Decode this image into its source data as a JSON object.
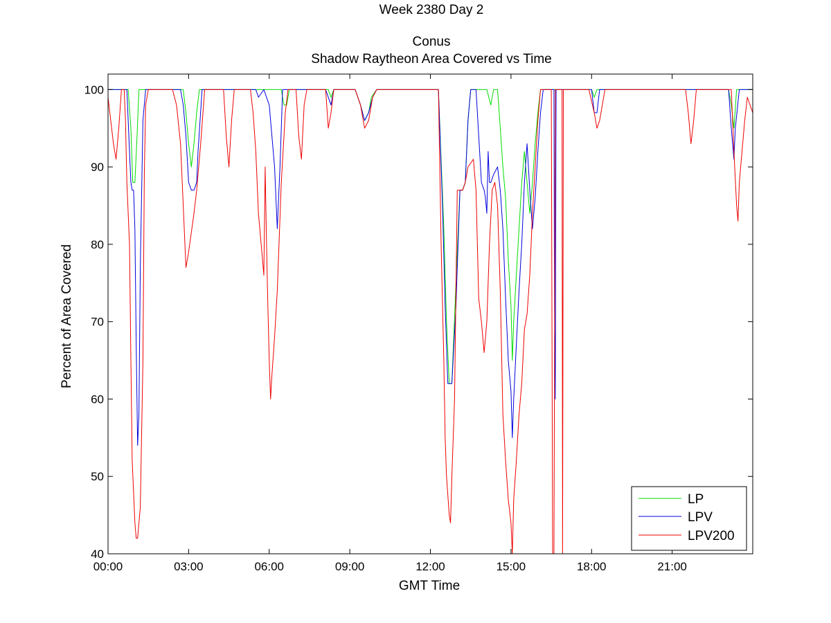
{
  "chart_data": {
    "type": "line",
    "title_lines": [
      "Week 2380 Day 2",
      "Conus",
      "Shadow Raytheon Area Covered vs Time"
    ],
    "xlabel": "GMT Time",
    "ylabel": "Percent of Area Covered",
    "xlim": [
      0,
      24
    ],
    "ylim": [
      40,
      102
    ],
    "x_ticks": [
      0,
      3,
      6,
      9,
      12,
      15,
      18,
      21
    ],
    "x_tick_labels": [
      "00:00",
      "03:00",
      "06:00",
      "09:00",
      "12:00",
      "15:00",
      "18:00",
      "21:00"
    ],
    "y_ticks": [
      40,
      50,
      60,
      70,
      80,
      90,
      100
    ],
    "y_tick_labels": [
      "40",
      "50",
      "60",
      "70",
      "80",
      "90",
      "100"
    ],
    "grid": false,
    "legend_position": "bottom-right",
    "series": [
      {
        "name": "LP",
        "color": "#00dd00",
        "points": [
          [
            0,
            100
          ],
          [
            0.75,
            100
          ],
          [
            0.85,
            95
          ],
          [
            0.92,
            88
          ],
          [
            1.0,
            88
          ],
          [
            1.08,
            94
          ],
          [
            1.15,
            100
          ],
          [
            1.4,
            100
          ],
          [
            1.7,
            100
          ],
          [
            2.8,
            100
          ],
          [
            2.9,
            97
          ],
          [
            3.0,
            93
          ],
          [
            3.1,
            90
          ],
          [
            3.2,
            93
          ],
          [
            3.3,
            97
          ],
          [
            3.4,
            100
          ],
          [
            5.8,
            100
          ],
          [
            6.2,
            100
          ],
          [
            6.45,
            100
          ],
          [
            6.55,
            98
          ],
          [
            6.65,
            98
          ],
          [
            6.75,
            100
          ],
          [
            8.2,
            100
          ],
          [
            8.3,
            99
          ],
          [
            8.4,
            100
          ],
          [
            9.2,
            100
          ],
          [
            9.4,
            98
          ],
          [
            9.55,
            96
          ],
          [
            9.7,
            97
          ],
          [
            9.8,
            99
          ],
          [
            10.0,
            100
          ],
          [
            12.0,
            100
          ],
          [
            12.3,
            100
          ],
          [
            12.5,
            82
          ],
          [
            12.6,
            70
          ],
          [
            12.7,
            62
          ],
          [
            12.8,
            62
          ],
          [
            12.95,
            75
          ],
          [
            13.1,
            87
          ],
          [
            13.2,
            87
          ],
          [
            13.3,
            88
          ],
          [
            13.4,
            96
          ],
          [
            13.5,
            100
          ],
          [
            14.1,
            100
          ],
          [
            14.25,
            98
          ],
          [
            14.35,
            100
          ],
          [
            14.5,
            100
          ],
          [
            14.6,
            95
          ],
          [
            14.7,
            90
          ],
          [
            14.8,
            86
          ],
          [
            14.9,
            78
          ],
          [
            15.0,
            72
          ],
          [
            15.05,
            65
          ],
          [
            15.1,
            70
          ],
          [
            15.2,
            76
          ],
          [
            15.3,
            82
          ],
          [
            15.4,
            88
          ],
          [
            15.5,
            92
          ],
          [
            15.6,
            88
          ],
          [
            15.7,
            84
          ],
          [
            15.8,
            88
          ],
          [
            15.9,
            93
          ],
          [
            16.0,
            97
          ],
          [
            16.1,
            100
          ],
          [
            18.0,
            100
          ],
          [
            18.1,
            99
          ],
          [
            18.2,
            100
          ],
          [
            18.4,
            100
          ],
          [
            21.5,
            100
          ],
          [
            22.0,
            100
          ],
          [
            23.1,
            100
          ],
          [
            23.2,
            98
          ],
          [
            23.3,
            95
          ],
          [
            23.4,
            100
          ],
          [
            24,
            100
          ]
        ]
      },
      {
        "name": "LPV",
        "color": "#0000dd",
        "points": [
          [
            0,
            100
          ],
          [
            0.7,
            100
          ],
          [
            0.8,
            92
          ],
          [
            0.85,
            88
          ],
          [
            0.9,
            87
          ],
          [
            0.95,
            87
          ],
          [
            1.0,
            82
          ],
          [
            1.05,
            67
          ],
          [
            1.1,
            54
          ],
          [
            1.15,
            58
          ],
          [
            1.2,
            77
          ],
          [
            1.3,
            96
          ],
          [
            1.4,
            100
          ],
          [
            1.7,
            100
          ],
          [
            2.7,
            100
          ],
          [
            2.8,
            98
          ],
          [
            2.9,
            94
          ],
          [
            3.0,
            88
          ],
          [
            3.1,
            87
          ],
          [
            3.2,
            87
          ],
          [
            3.3,
            88
          ],
          [
            3.35,
            92
          ],
          [
            3.5,
            100
          ],
          [
            5.5,
            100
          ],
          [
            5.6,
            99
          ],
          [
            5.8,
            100
          ],
          [
            6.0,
            98
          ],
          [
            6.2,
            90
          ],
          [
            6.3,
            82
          ],
          [
            6.4,
            90
          ],
          [
            6.5,
            100
          ],
          [
            7.0,
            100
          ],
          [
            8.1,
            100
          ],
          [
            8.3,
            98
          ],
          [
            8.4,
            100
          ],
          [
            9.2,
            100
          ],
          [
            9.4,
            98
          ],
          [
            9.55,
            96
          ],
          [
            9.7,
            97
          ],
          [
            9.85,
            99
          ],
          [
            10.0,
            100
          ],
          [
            12.0,
            100
          ],
          [
            12.3,
            100
          ],
          [
            12.45,
            85
          ],
          [
            12.55,
            72
          ],
          [
            12.65,
            62
          ],
          [
            12.8,
            62
          ],
          [
            12.95,
            72
          ],
          [
            13.1,
            87
          ],
          [
            13.2,
            87
          ],
          [
            13.3,
            88
          ],
          [
            13.4,
            96
          ],
          [
            13.5,
            100
          ],
          [
            13.7,
            100
          ],
          [
            13.9,
            88
          ],
          [
            14.0,
            87
          ],
          [
            14.05,
            86
          ],
          [
            14.1,
            84
          ],
          [
            14.15,
            92
          ],
          [
            14.2,
            88
          ],
          [
            14.25,
            88
          ],
          [
            14.35,
            89
          ],
          [
            14.5,
            90
          ],
          [
            14.6,
            87
          ],
          [
            14.7,
            82
          ],
          [
            14.8,
            73
          ],
          [
            14.9,
            65
          ],
          [
            15.0,
            61
          ],
          [
            15.05,
            55
          ],
          [
            15.1,
            60
          ],
          [
            15.2,
            67
          ],
          [
            15.3,
            74
          ],
          [
            15.4,
            80
          ],
          [
            15.5,
            88
          ],
          [
            15.6,
            93
          ],
          [
            15.7,
            87
          ],
          [
            15.8,
            82
          ],
          [
            15.9,
            86
          ],
          [
            16.0,
            92
          ],
          [
            16.1,
            97
          ],
          [
            16.2,
            100
          ],
          [
            16.6,
            100
          ],
          [
            16.62,
            72
          ],
          [
            16.65,
            60
          ],
          [
            16.68,
            100
          ],
          [
            18.0,
            100
          ],
          [
            18.1,
            97
          ],
          [
            18.2,
            97
          ],
          [
            18.3,
            100
          ],
          [
            21.5,
            100
          ],
          [
            22.0,
            100
          ],
          [
            23.1,
            100
          ],
          [
            23.2,
            95
          ],
          [
            23.3,
            91
          ],
          [
            23.35,
            95
          ],
          [
            23.5,
            100
          ],
          [
            24,
            100
          ]
        ]
      },
      {
        "name": "LPV200",
        "color": "#ee0000",
        "points": [
          [
            0,
            99
          ],
          [
            0.2,
            93
          ],
          [
            0.3,
            91
          ],
          [
            0.4,
            95
          ],
          [
            0.5,
            100
          ],
          [
            0.6,
            100
          ],
          [
            0.65,
            96
          ],
          [
            0.7,
            88
          ],
          [
            0.8,
            80
          ],
          [
            0.85,
            65
          ],
          [
            0.9,
            52
          ],
          [
            1.0,
            44
          ],
          [
            1.05,
            42
          ],
          [
            1.1,
            42
          ],
          [
            1.2,
            46
          ],
          [
            1.3,
            65
          ],
          [
            1.35,
            89
          ],
          [
            1.4,
            98
          ],
          [
            1.5,
            100
          ],
          [
            2.4,
            100
          ],
          [
            2.55,
            98
          ],
          [
            2.7,
            93
          ],
          [
            2.8,
            85
          ],
          [
            2.9,
            77
          ],
          [
            3.0,
            79
          ],
          [
            3.2,
            84
          ],
          [
            3.3,
            87
          ],
          [
            3.45,
            93
          ],
          [
            3.6,
            100
          ],
          [
            4.3,
            100
          ],
          [
            4.4,
            94
          ],
          [
            4.5,
            90
          ],
          [
            4.6,
            96
          ],
          [
            4.7,
            100
          ],
          [
            5.3,
            100
          ],
          [
            5.4,
            97
          ],
          [
            5.5,
            92
          ],
          [
            5.6,
            84
          ],
          [
            5.75,
            78
          ],
          [
            5.8,
            76
          ],
          [
            5.85,
            90
          ],
          [
            5.9,
            80
          ],
          [
            5.95,
            72
          ],
          [
            6.0,
            65
          ],
          [
            6.05,
            60
          ],
          [
            6.1,
            63
          ],
          [
            6.2,
            68
          ],
          [
            6.3,
            74
          ],
          [
            6.45,
            88
          ],
          [
            6.6,
            97
          ],
          [
            6.7,
            100
          ],
          [
            7.0,
            100
          ],
          [
            7.1,
            94
          ],
          [
            7.2,
            91
          ],
          [
            7.3,
            98
          ],
          [
            7.4,
            100
          ],
          [
            8.1,
            100
          ],
          [
            8.2,
            95
          ],
          [
            8.3,
            97
          ],
          [
            8.4,
            100
          ],
          [
            9.2,
            100
          ],
          [
            9.4,
            98
          ],
          [
            9.55,
            95
          ],
          [
            9.7,
            96
          ],
          [
            9.85,
            99
          ],
          [
            10.0,
            100
          ],
          [
            12.3,
            100
          ],
          [
            12.4,
            80
          ],
          [
            12.5,
            65
          ],
          [
            12.55,
            55
          ],
          [
            12.6,
            50
          ],
          [
            12.7,
            45
          ],
          [
            12.75,
            44
          ],
          [
            12.8,
            50
          ],
          [
            12.9,
            60
          ],
          [
            13.0,
            87
          ],
          [
            13.2,
            87
          ],
          [
            13.3,
            88
          ],
          [
            13.4,
            90
          ],
          [
            13.6,
            91
          ],
          [
            13.7,
            87
          ],
          [
            13.8,
            73
          ],
          [
            13.9,
            70
          ],
          [
            14.0,
            66
          ],
          [
            14.1,
            70
          ],
          [
            14.2,
            80
          ],
          [
            14.3,
            87
          ],
          [
            14.4,
            88
          ],
          [
            14.5,
            85
          ],
          [
            14.6,
            74
          ],
          [
            14.7,
            58
          ],
          [
            14.8,
            52
          ],
          [
            14.9,
            47
          ],
          [
            15.0,
            44
          ],
          [
            15.05,
            40
          ],
          [
            15.1,
            47
          ],
          [
            15.2,
            52
          ],
          [
            15.3,
            58
          ],
          [
            15.4,
            62
          ],
          [
            15.5,
            69
          ],
          [
            15.6,
            71
          ],
          [
            15.7,
            76
          ],
          [
            15.8,
            84
          ],
          [
            15.9,
            90
          ],
          [
            16.0,
            96
          ],
          [
            16.1,
            100
          ],
          [
            16.5,
            100
          ],
          [
            16.55,
            40
          ],
          [
            16.6,
            40
          ],
          [
            16.65,
            100
          ],
          [
            16.9,
            100
          ],
          [
            16.92,
            40
          ],
          [
            16.95,
            100
          ],
          [
            17.9,
            100
          ],
          [
            18.1,
            97
          ],
          [
            18.2,
            95
          ],
          [
            18.3,
            96
          ],
          [
            18.5,
            100
          ],
          [
            21.5,
            100
          ],
          [
            21.6,
            97
          ],
          [
            21.7,
            93
          ],
          [
            21.8,
            96
          ],
          [
            21.9,
            100
          ],
          [
            23.2,
            100
          ],
          [
            23.3,
            92
          ],
          [
            23.4,
            85
          ],
          [
            23.45,
            83
          ],
          [
            23.5,
            88
          ],
          [
            23.6,
            92
          ],
          [
            23.7,
            96
          ],
          [
            23.8,
            99
          ],
          [
            24,
            97
          ]
        ]
      }
    ]
  }
}
